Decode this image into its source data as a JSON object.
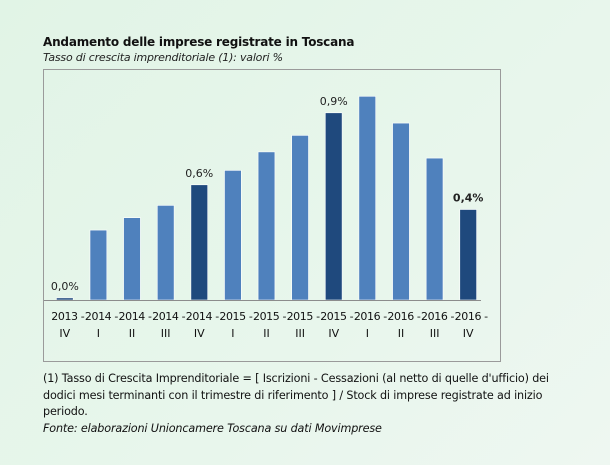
{
  "header": {
    "title": "Andamento delle imprese registrate in Toscana",
    "subtitle": "Tasso di crescita imprenditoriale (1): valori %"
  },
  "footnote": {
    "definition": "(1) Tasso di Crescita Imprenditoriale = [ Iscrizioni - Cessazioni (al netto di quelle d'ufficio) dei dodici mesi terminanti con il trimestre di riferimento ] / Stock di imprese registrate ad inizio periodo.",
    "source": "Fonte: elaborazioni Unioncamere Toscana su dati Movimprese"
  },
  "colors": {
    "bar_regular": "#4f81bd",
    "bar_highlight": "#1f497d",
    "axis": "#8c8c8c"
  },
  "chart_data": {
    "type": "bar",
    "title": "Andamento delle imprese registrate in Toscana",
    "subtitle": "Tasso di crescita imprenditoriale (1): valori %",
    "xlabel": "",
    "ylabel": "",
    "ylim": [
      0,
      1.05
    ],
    "grid": false,
    "legend": "none",
    "categories": [
      {
        "year": "2013 -",
        "quarter": "IV"
      },
      {
        "year": "2014 -",
        "quarter": "I"
      },
      {
        "year": "2014 -",
        "quarter": "II"
      },
      {
        "year": "2014 -",
        "quarter": "III"
      },
      {
        "year": "2014 -",
        "quarter": "IV"
      },
      {
        "year": "2015 -",
        "quarter": "I"
      },
      {
        "year": "2015 -",
        "quarter": "II"
      },
      {
        "year": "2015 -",
        "quarter": "III"
      },
      {
        "year": "2015 -",
        "quarter": "IV"
      },
      {
        "year": "2016 -",
        "quarter": "I"
      },
      {
        "year": "2016 -",
        "quarter": "II"
      },
      {
        "year": "2016 -",
        "quarter": "III"
      },
      {
        "year": "2016 -",
        "quarter": "IV"
      }
    ],
    "values": [
      0.01,
      0.34,
      0.4,
      0.46,
      0.56,
      0.63,
      0.72,
      0.8,
      0.91,
      0.99,
      0.86,
      0.69,
      0.44
    ],
    "highlighted": [
      true,
      false,
      false,
      false,
      true,
      false,
      false,
      false,
      true,
      false,
      false,
      false,
      true
    ],
    "data_labels": [
      {
        "index": 0,
        "text": "0,0%",
        "bold": false
      },
      {
        "index": 4,
        "text": "0,6%",
        "bold": false
      },
      {
        "index": 8,
        "text": "0,9%",
        "bold": false
      },
      {
        "index": 12,
        "text": "0,4%",
        "bold": true
      }
    ]
  }
}
